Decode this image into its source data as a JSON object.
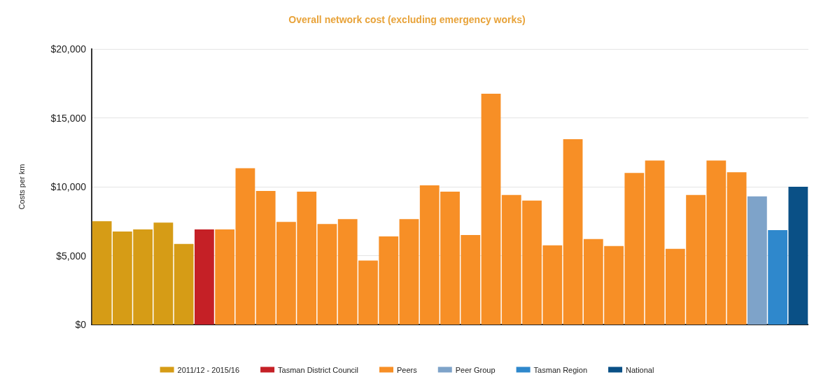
{
  "chart_data": {
    "type": "bar",
    "title": "Overall network cost (excluding emergency works)",
    "ylabel": "Costs per km",
    "categories": [
      null,
      null,
      null,
      null,
      null,
      null,
      null,
      null,
      null,
      null,
      null,
      null,
      null,
      null,
      null,
      null,
      null,
      null,
      null,
      null,
      null,
      null,
      null,
      null,
      null,
      null,
      null,
      null,
      null,
      null,
      null,
      null,
      null,
      null,
      null
    ],
    "stacked": true,
    "series": [
      {
        "name": "2011/12 - 2015/16",
        "color": "#d69c16",
        "values": [
          7500,
          6750,
          6900,
          7400,
          5850,
          null,
          null,
          null,
          null,
          null,
          null,
          null,
          null,
          null,
          null,
          null,
          null,
          null,
          null,
          null,
          null,
          null,
          null,
          null,
          null,
          null,
          null,
          null,
          null,
          null,
          null,
          null,
          null,
          null,
          null
        ]
      },
      {
        "name": "Tasman District Council",
        "color": "#c52026",
        "values": [
          null,
          null,
          null,
          null,
          null,
          6900,
          null,
          null,
          null,
          null,
          null,
          null,
          null,
          null,
          null,
          null,
          null,
          null,
          null,
          null,
          null,
          null,
          null,
          null,
          null,
          null,
          null,
          null,
          null,
          null,
          null,
          null,
          null,
          null,
          null
        ]
      },
      {
        "name": "Peers",
        "color": "#f78f26",
        "values": [
          null,
          null,
          null,
          null,
          null,
          null,
          6900,
          11350,
          9700,
          7450,
          9650,
          7300,
          7650,
          4650,
          6400,
          7650,
          10100,
          9650,
          6500,
          16750,
          9400,
          9000,
          5750,
          13450,
          6200,
          5700,
          11000,
          11900,
          5500,
          9400,
          11900,
          11050,
          null,
          null,
          null
        ]
      },
      {
        "name": "Peer Group",
        "color": "#7ea3c9",
        "values": [
          null,
          null,
          null,
          null,
          null,
          null,
          null,
          null,
          null,
          null,
          null,
          null,
          null,
          null,
          null,
          null,
          null,
          null,
          null,
          null,
          null,
          null,
          null,
          null,
          null,
          null,
          null,
          null,
          null,
          null,
          null,
          null,
          9300,
          null,
          null
        ]
      },
      {
        "name": "Tasman Region",
        "color": "#2f88cc",
        "values": [
          null,
          null,
          null,
          null,
          null,
          null,
          null,
          null,
          null,
          null,
          null,
          null,
          null,
          null,
          null,
          null,
          null,
          null,
          null,
          null,
          null,
          null,
          null,
          null,
          null,
          null,
          null,
          null,
          null,
          null,
          null,
          null,
          null,
          6850,
          null
        ]
      },
      {
        "name": "National",
        "color": "#0a5086",
        "values": [
          null,
          null,
          null,
          null,
          null,
          null,
          null,
          null,
          null,
          null,
          null,
          null,
          null,
          null,
          null,
          null,
          null,
          null,
          null,
          null,
          null,
          null,
          null,
          null,
          null,
          null,
          null,
          null,
          null,
          null,
          null,
          null,
          null,
          null,
          10000
        ]
      }
    ],
    "ylim": [
      0,
      20000
    ],
    "yticks": [
      {
        "value": 0,
        "label": "$0"
      },
      {
        "value": 5000,
        "label": "$5,000"
      },
      {
        "value": 10000,
        "label": "$10,000"
      },
      {
        "value": 15000,
        "label": "$15,000"
      },
      {
        "value": 20000,
        "label": "$20,000"
      }
    ],
    "grid": "y",
    "legend": "bottom"
  }
}
